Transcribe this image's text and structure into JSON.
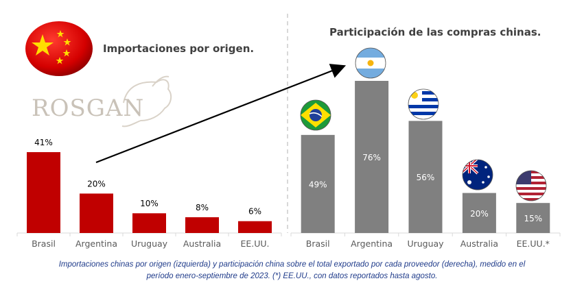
{
  "left_title": "Importaciones por origen.",
  "right_title": "Participación de las compras chinas.",
  "watermark": "ROSGAN",
  "caption_line1": "Importaciones chinas por origen (izquierda) y participación china sobre el total exportado por cada proveedor (derecha), medido en el",
  "caption_line2": "período enero-septiembre de 2023. (*) EE.UU., con datos reportados hasta agosto.",
  "colors": {
    "left_bar": "#c00000",
    "right_bar": "#808080",
    "axis": "#d9d9d9",
    "divider": "#bfbfbf",
    "caption": "#1f3b8a"
  },
  "chart_data": [
    {
      "type": "bar",
      "title": "Importaciones por origen.",
      "categories": [
        "Brasil",
        "Argentina",
        "Uruguay",
        "Australia",
        "EE.UU."
      ],
      "values": [
        41,
        20,
        10,
        8,
        6
      ],
      "labels": [
        "41%",
        "20%",
        "10%",
        "8%",
        "6%"
      ],
      "unit": "%",
      "ylim": [
        0,
        41
      ],
      "grid": false,
      "label_position": "above"
    },
    {
      "type": "bar",
      "title": "Participación de las compras chinas.",
      "categories": [
        "Brasil",
        "Argentina",
        "Uruguay",
        "Australia",
        "EE.UU.*"
      ],
      "values": [
        49,
        76,
        56,
        20,
        15
      ],
      "labels": [
        "49%",
        "76%",
        "56%",
        "20%",
        "15%"
      ],
      "unit": "%",
      "ylim": [
        0,
        76
      ],
      "grid": false,
      "label_position": "inside",
      "flags": [
        "brazil-flag-icon",
        "argentina-flag-icon",
        "uruguay-flag-icon",
        "australia-flag-icon",
        "usa-flag-icon"
      ]
    }
  ]
}
